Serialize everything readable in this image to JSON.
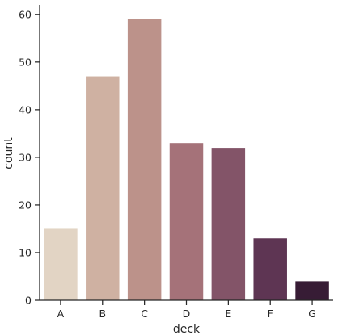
{
  "chart_data": {
    "type": "bar",
    "title": "",
    "xlabel": "deck",
    "ylabel": "count",
    "categories": [
      "A",
      "B",
      "C",
      "D",
      "E",
      "F",
      "G"
    ],
    "values": [
      15,
      47,
      59,
      33,
      32,
      13,
      4
    ],
    "ylim": [
      0,
      62
    ],
    "yticks": [
      0,
      10,
      20,
      30,
      40,
      50,
      60
    ],
    "colors": [
      "#e2d4c4",
      "#cfb1a2",
      "#bc928a",
      "#a57279",
      "#835468",
      "#5e3553",
      "#371c35"
    ],
    "grid": false,
    "legend": "none"
  }
}
